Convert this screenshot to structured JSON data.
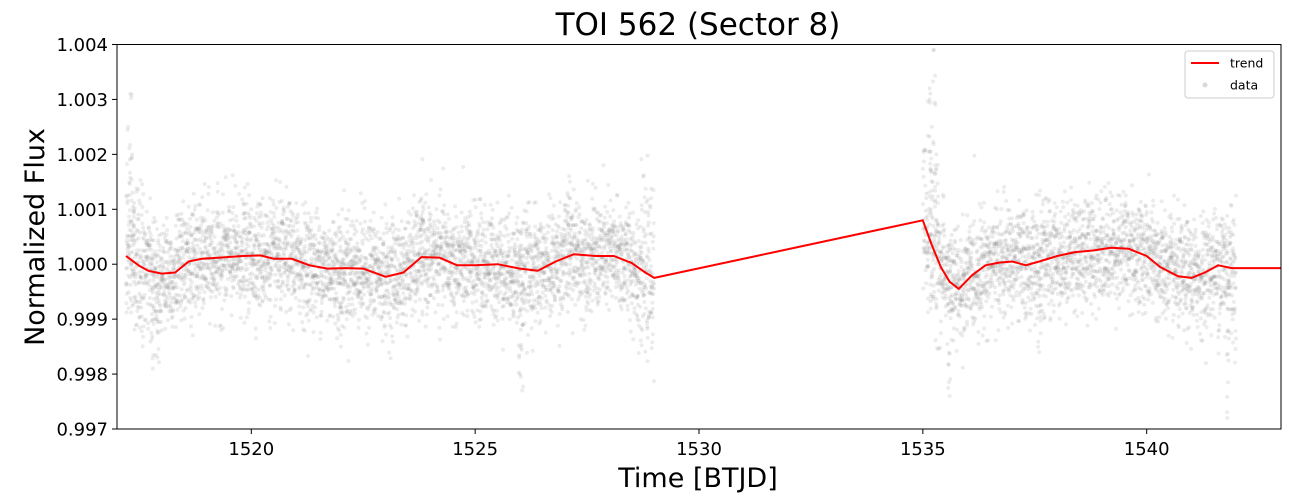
{
  "chart_data": {
    "type": "scatter",
    "title": "TOI 562 (Sector 8)",
    "xlabel": "Time [BTJD]",
    "ylabel": "Normalized Flux",
    "xlim": [
      1517.0,
      1543.0
    ],
    "ylim": [
      0.997,
      1.004
    ],
    "xticks": [
      1520,
      1525,
      1530,
      1535,
      1540
    ],
    "xtick_labels": [
      "1520",
      "1525",
      "1530",
      "1535",
      "1540"
    ],
    "yticks": [
      0.997,
      0.998,
      0.999,
      1.0,
      1.001,
      1.002,
      1.003,
      1.004
    ],
    "ytick_labels": [
      "0.997",
      "0.998",
      "0.999",
      "1.000",
      "1.001",
      "1.002",
      "1.003",
      "1.004"
    ],
    "grid": false,
    "legend": {
      "position": "top-right",
      "entries": [
        "trend",
        "data"
      ]
    },
    "series": [
      {
        "name": "trend",
        "kind": "line",
        "color": "#ff0000",
        "x": [
          1517.2,
          1517.5,
          1517.7,
          1518.0,
          1518.3,
          1518.6,
          1518.9,
          1519.3,
          1519.8,
          1520.2,
          1520.5,
          1520.9,
          1521.3,
          1521.7,
          1522.1,
          1522.5,
          1523.0,
          1523.4,
          1523.8,
          1524.2,
          1524.6,
          1525.0,
          1525.5,
          1526.0,
          1526.4,
          1526.8,
          1527.2,
          1527.7,
          1528.1,
          1528.5,
          1528.8,
          1529.0,
          1535.0,
          1535.2,
          1535.4,
          1535.6,
          1535.8,
          1536.1,
          1536.4,
          1536.7,
          1537.0,
          1537.3,
          1537.6,
          1538.0,
          1538.4,
          1538.8,
          1539.2,
          1539.6,
          1540.0,
          1540.3,
          1540.7,
          1541.0,
          1541.3,
          1541.6,
          1541.9,
          1542.0,
          1542.3,
          1543.0
        ],
        "y": [
          1.00015,
          0.99997,
          0.99988,
          0.99983,
          0.99985,
          1.00005,
          1.0001,
          1.00012,
          1.00015,
          1.00016,
          1.0001,
          1.0001,
          0.99998,
          0.99992,
          0.99993,
          0.99992,
          0.99977,
          0.99985,
          1.00013,
          1.00012,
          0.99998,
          0.99998,
          1.0,
          0.99992,
          0.99988,
          1.00005,
          1.00018,
          1.00015,
          1.00015,
          1.00002,
          0.99985,
          0.99975,
          1.0008,
          1.00035,
          0.99995,
          0.99968,
          0.99955,
          0.9998,
          0.99998,
          1.00003,
          1.00005,
          0.99998,
          1.00005,
          1.00015,
          1.00022,
          1.00025,
          1.0003,
          1.00028,
          1.00015,
          0.99995,
          0.99978,
          0.99975,
          0.99985,
          0.99998,
          0.99993,
          0.99993,
          0.99993,
          0.99993
        ]
      },
      {
        "name": "data",
        "kind": "scatter",
        "color": "#808080",
        "alpha": 0.15,
        "segments": [
          [
            1517.2,
            1529.0
          ],
          [
            1535.0,
            1542.0
          ]
        ],
        "scatter_sigma": 0.0005,
        "n_points": 7000,
        "spikes": [
          {
            "x": 1517.25,
            "y": 1.0025
          },
          {
            "x": 1517.3,
            "y": 1.0031
          },
          {
            "x": 1517.35,
            "y": 1.0013
          },
          {
            "x": 1517.8,
            "y": 0.9981
          },
          {
            "x": 1517.9,
            "y": 0.9983
          },
          {
            "x": 1522.0,
            "y": 0.9985
          },
          {
            "x": 1523.8,
            "y": 1.0012
          },
          {
            "x": 1526.0,
            "y": 0.998
          },
          {
            "x": 1526.05,
            "y": 0.9977
          },
          {
            "x": 1527.1,
            "y": 1.0016
          },
          {
            "x": 1535.15,
            "y": 1.0032
          },
          {
            "x": 1535.2,
            "y": 1.0025
          },
          {
            "x": 1535.25,
            "y": 1.0039
          },
          {
            "x": 1535.3,
            "y": 1.002
          },
          {
            "x": 1535.6,
            "y": 0.9976
          },
          {
            "x": 1537.6,
            "y": 0.9984
          },
          {
            "x": 1541.8,
            "y": 0.9972
          }
        ]
      }
    ]
  }
}
